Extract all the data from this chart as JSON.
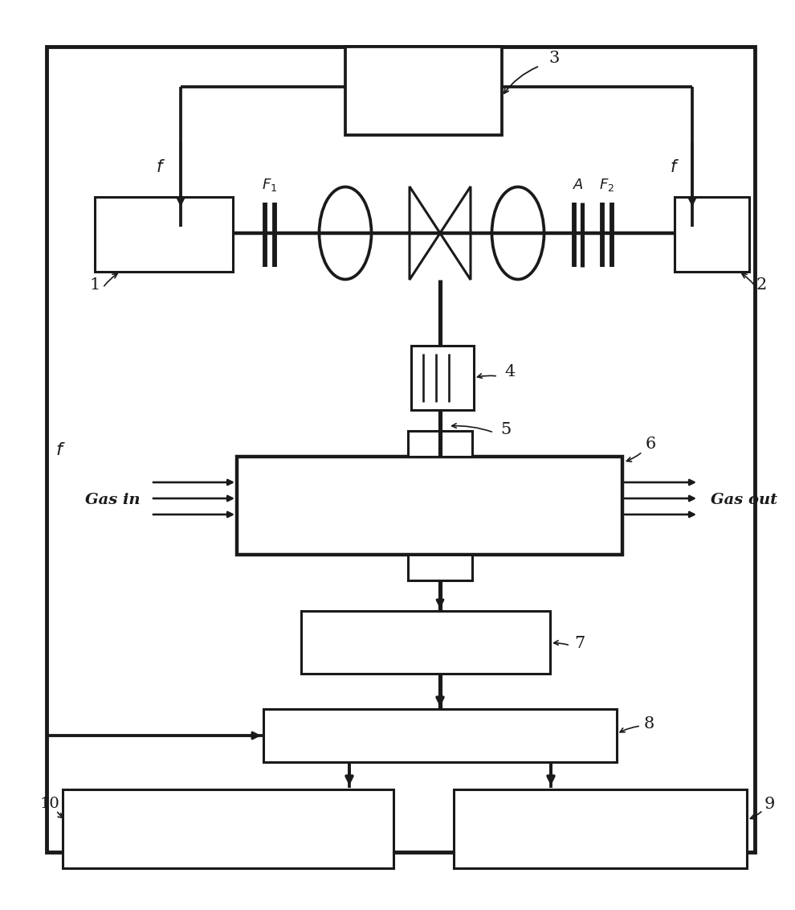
{
  "bg_color": "#ffffff",
  "line_color": "#1a1a1a",
  "lw": 2.2,
  "fig_w": 9.9,
  "fig_h": 11.32
}
